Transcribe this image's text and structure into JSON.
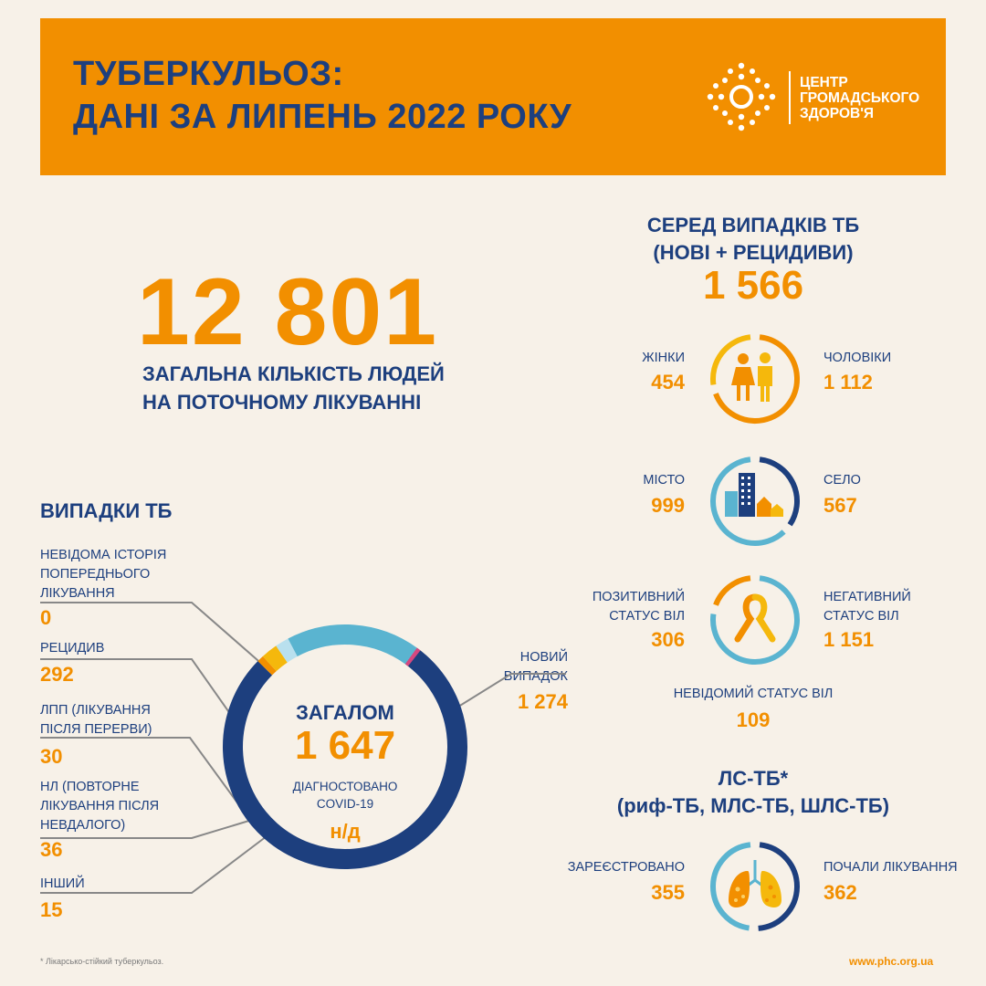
{
  "header": {
    "title_line1": "ТУБЕРКУЛЬОЗ:",
    "title_line2": "ДАНІ ЗА ЛИПЕНЬ 2022 РОКУ",
    "org_line1": "ЦЕНТР",
    "org_line2": "ГРОМАДСЬКОГО",
    "org_line3": "ЗДОРОВ'Я"
  },
  "total_treatment": {
    "value": "12 801",
    "caption_line1": "ЗАГАЛЬНА КІЛЬКІСТЬ ЛЮДЕЙ",
    "caption_line2": "НА ПОТОЧНОМУ ЛІКУВАННІ"
  },
  "among_cases": {
    "title_line1": "СЕРЕД ВИПАДКІВ ТБ",
    "title_line2": "(НОВІ + РЕЦИДИВИ)",
    "total": "1 566",
    "gender": {
      "left_label": "ЖІНКИ",
      "left_value": "454",
      "right_label": "ЧОЛОВІКИ",
      "right_value": "1 112",
      "icon": "people-icon"
    },
    "location": {
      "left_label": "МІСТО",
      "left_value": "999",
      "right_label": "СЕЛО",
      "right_value": "567",
      "icon": "buildings-icon"
    },
    "hiv": {
      "left_label_line1": "ПОЗИТИВНИЙ",
      "left_label_line2": "СТАТУС ВІЛ",
      "left_value": "306",
      "right_label_line1": "НЕГАТИВНИЙ",
      "right_label_line2": "СТАТУС  ВІЛ",
      "right_value": "1 151",
      "unknown_label": "НЕВІДОМИЙ СТАТУС ВІЛ",
      "unknown_value": "109",
      "icon": "ribbon-icon"
    }
  },
  "dr_tb": {
    "title_line1": "ЛС-ТБ*",
    "title_line2": "(риф-ТБ, МЛС-ТБ, ШЛС-ТБ)",
    "left_label": "ЗАРЕЄСТРОВАНО",
    "left_value": "355",
    "right_label": "ПОЧАЛИ ЛІКУВАННЯ",
    "right_value": "362",
    "icon": "lungs-icon"
  },
  "tb_cases": {
    "title": "ВИПАДКИ ТБ",
    "center_label": "ЗАГАЛОМ",
    "center_value": "1 647",
    "covid_line1": "ДІАГНОСТОВАНО",
    "covid_line2": "COVID-19",
    "covid_value": "н/д",
    "labels": {
      "unknown_line1": "НЕВІДОМА ІСТОРІЯ",
      "unknown_line2": "ПОПЕРЕДНЬОГО",
      "unknown_line3": "ЛІКУВАННЯ",
      "unknown_value": "0",
      "relapse": "РЕЦИДИВ",
      "relapse_value": "292",
      "lpp_line1": "ЛПП (ЛІКУВАННЯ",
      "lpp_line2": "ПІСЛЯ ПЕРЕРВИ)",
      "lpp_value": "30",
      "nl_line1": "НЛ (ПОВТОРНЕ",
      "nl_line2": "ЛІКУВАННЯ ПІСЛЯ",
      "nl_line3": "НЕВДАЛОГО)",
      "nl_value": "36",
      "other": "ІНШИЙ",
      "other_value": "15",
      "new_line1": "НОВИЙ",
      "new_line2": "ВИПАДОК",
      "new_value": "1 274"
    }
  },
  "chart_data": {
    "type": "pie",
    "title": "ВИПАДКИ ТБ",
    "categories": [
      "НОВИЙ ВИПАДОК",
      "ІНШИЙ",
      "НЛ (ПОВТОРНЕ ЛІКУВАННЯ ПІСЛЯ НЕВДАЛОГО)",
      "ЛПП (ЛІКУВАННЯ ПІСЛЯ ПЕРЕРВИ)",
      "РЕЦИДИВ",
      "НЕВІДОМА ІСТОРІЯ ПОПЕРЕДНЬОГО ЛІКУВАННЯ"
    ],
    "values": [
      1274,
      15,
      36,
      30,
      292,
      0
    ],
    "colors": [
      "#1d3f7e",
      "#f28f00",
      "#f5b80c",
      "#b9e0ee",
      "#5ab4d0",
      "#d6477f"
    ],
    "total": 1647
  },
  "footer": {
    "footnote": "* Лікарсько-стійкий туберкульоз.",
    "url": "www.phc.org.ua"
  }
}
